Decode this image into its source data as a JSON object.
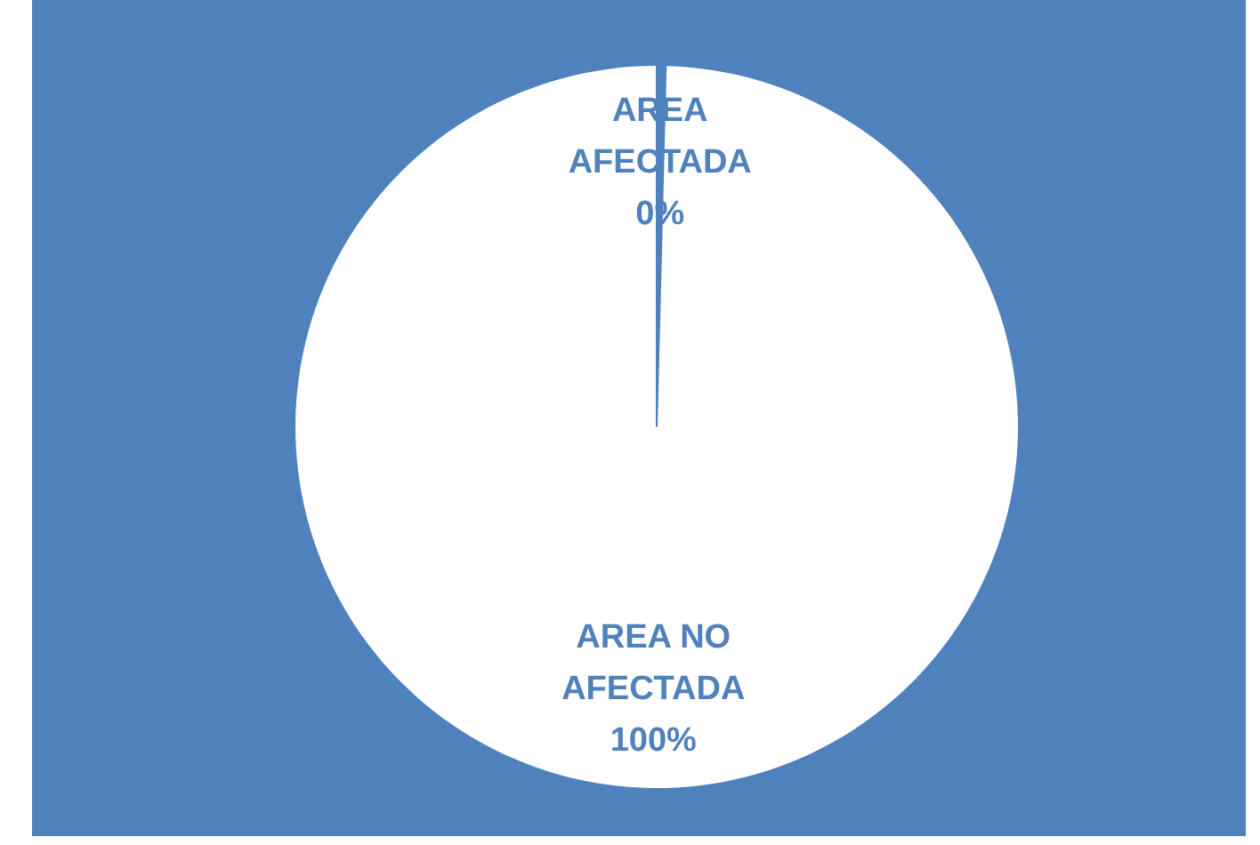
{
  "chart_data": {
    "type": "pie",
    "categories": [
      "AREA AFECTADA",
      "AREA NO AFECTADA"
    ],
    "values": [
      0.4,
      99.6
    ],
    "colors": [
      "#4f81bd",
      "#ffffff"
    ],
    "value_labels": [
      "0%",
      "100%"
    ]
  }
}
